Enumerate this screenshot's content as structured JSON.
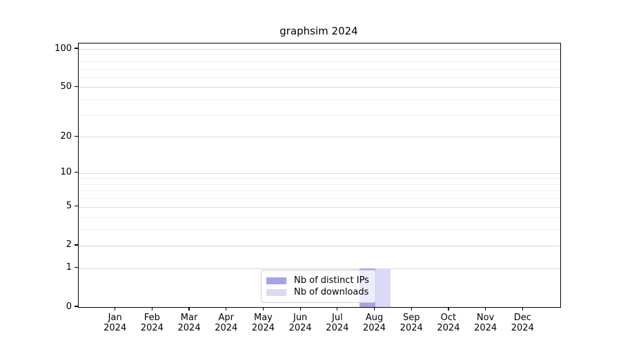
{
  "chart_data": {
    "type": "bar",
    "title": "graphsim 2024",
    "categories": [
      "Jan",
      "Feb",
      "Mar",
      "Apr",
      "May",
      "Jun",
      "Jul",
      "Aug",
      "Sep",
      "Oct",
      "Nov",
      "Dec"
    ],
    "year_label": "2024",
    "series": [
      {
        "name": "Nb of distinct IPs",
        "color": "#a3a3ec",
        "values": [
          0,
          0,
          0,
          0,
          0,
          0,
          0,
          1,
          0,
          0,
          0,
          0
        ]
      },
      {
        "name": "Nb of downloads",
        "color": "#dadaf8",
        "values": [
          0,
          0,
          0,
          0,
          0,
          0,
          0,
          1,
          0,
          0,
          0,
          0
        ]
      }
    ],
    "y_scale": "log1p",
    "ylim": [
      0,
      100
    ],
    "y_major_ticks": [
      100,
      50,
      20,
      10,
      5,
      2,
      1,
      0
    ],
    "y_minor_gridlines": [
      90,
      80,
      70,
      60,
      40,
      30,
      9,
      8,
      7,
      6,
      4,
      3
    ],
    "grid": true,
    "legend_position": "lower center"
  },
  "colors": {
    "major_grid": "#d8d8d8",
    "minor_grid": "#efefef",
    "axis": "#000000",
    "legend_border": "#cccccc"
  }
}
